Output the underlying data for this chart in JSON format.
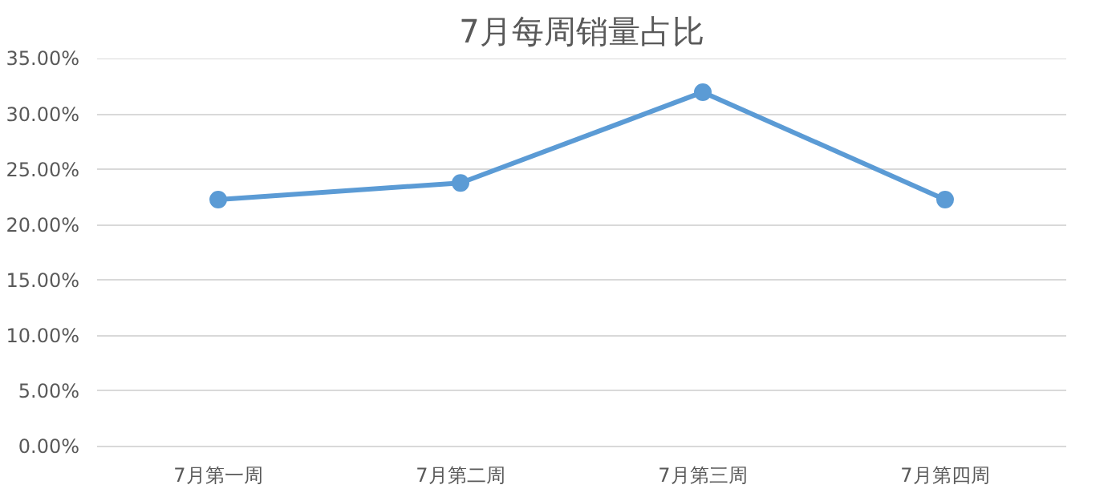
{
  "chart_data": {
    "type": "line",
    "title": "7月每周销量占比",
    "categories": [
      "7月第一周",
      "7月第二周",
      "7月第三周",
      "7月第四周"
    ],
    "series": [
      {
        "color": "#5b9bd5",
        "values": [
          22.3,
          23.8,
          32.0,
          22.3
        ]
      }
    ],
    "ylim": [
      0,
      35
    ],
    "yticks": [
      {
        "value": 0,
        "label": "0.00%"
      },
      {
        "value": 5,
        "label": "5.00%"
      },
      {
        "value": 10,
        "label": "10.00%"
      },
      {
        "value": 15,
        "label": "15.00%"
      },
      {
        "value": 20,
        "label": "20.00%"
      },
      {
        "value": 25,
        "label": "25.00%"
      },
      {
        "value": 30,
        "label": "30.00%"
      },
      {
        "value": 35,
        "label": "35.00%"
      }
    ],
    "grid": "y",
    "marker": "circle",
    "line_style": "solid"
  }
}
